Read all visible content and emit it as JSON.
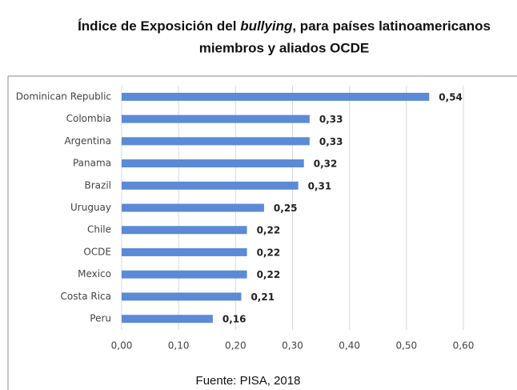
{
  "chart_data": {
    "type": "bar",
    "orientation": "horizontal",
    "title": [
      "Índice de Exposición del ",
      "bullying",
      ", para países latinoamericanos",
      "miembros y aliados OCDE"
    ],
    "categories": [
      "Dominican Republic",
      "Colombia",
      "Argentina",
      "Panama",
      "Brazil",
      "Uruguay",
      "Chile",
      "OCDE",
      "Mexico",
      "Costa Rica",
      "Peru"
    ],
    "values": [
      0.54,
      0.33,
      0.33,
      0.32,
      0.31,
      0.25,
      0.22,
      0.22,
      0.22,
      0.21,
      0.16
    ],
    "value_labels": [
      "0,54",
      "0,33",
      "0,33",
      "0,32",
      "0,31",
      "0,25",
      "0,22",
      "0,22",
      "0,22",
      "0,21",
      "0,16"
    ],
    "color": "#5b8ad6",
    "xlim": [
      0,
      0.6
    ],
    "xticks": [
      {
        "value": 0,
        "label": "0,00"
      },
      {
        "value": 0.1,
        "label": "0,10"
      },
      {
        "value": 0.2,
        "label": "0,20"
      },
      {
        "value": 0.3,
        "label": "0,30"
      },
      {
        "value": 0.4,
        "label": "0,40"
      },
      {
        "value": 0.5,
        "label": "0,50"
      },
      {
        "value": 0.6,
        "label": "0,60"
      }
    ],
    "grid": true,
    "source": "Fuente: PISA, 2018"
  }
}
